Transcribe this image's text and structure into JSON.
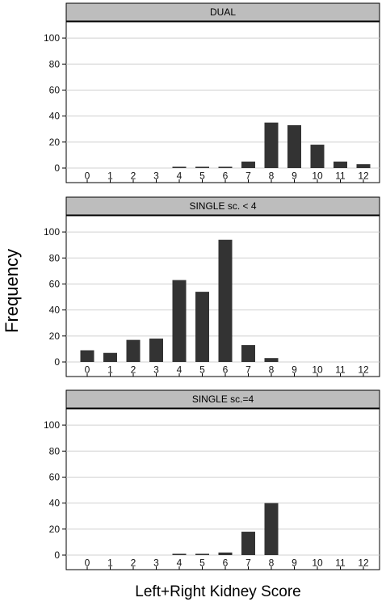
{
  "figure": {
    "ylabel": "Frequency",
    "xlabel": "Left+Right Kidney Score"
  },
  "colors": {
    "bar": "#333333",
    "strip": "#bdbdbd",
    "grid": "#d0d0d0",
    "frame": "#000000"
  },
  "chart_data": [
    {
      "type": "bar",
      "title": "DUAL",
      "categories": [
        "0",
        "1",
        "2",
        "3",
        "4",
        "5",
        "6",
        "7",
        "8",
        "9",
        "10",
        "11",
        "12"
      ],
      "values": [
        0,
        0,
        0,
        0,
        1,
        1,
        1,
        5,
        35,
        33,
        18,
        5,
        3
      ],
      "yticks": [
        0,
        20,
        40,
        60,
        80,
        100
      ],
      "ylim": [
        0,
        110
      ],
      "grid": true
    },
    {
      "type": "bar",
      "title": "SINGLE sc. < 4",
      "categories": [
        "0",
        "1",
        "2",
        "3",
        "4",
        "5",
        "6",
        "7",
        "8",
        "9",
        "10",
        "11",
        "12"
      ],
      "values": [
        9,
        7,
        17,
        18,
        63,
        54,
        94,
        13,
        3,
        0,
        0,
        0,
        0
      ],
      "yticks": [
        0,
        20,
        40,
        60,
        80,
        100
      ],
      "ylim": [
        0,
        110
      ],
      "grid": true
    },
    {
      "type": "bar",
      "title": "SINGLE sc.=4",
      "categories": [
        "0",
        "1",
        "2",
        "3",
        "4",
        "5",
        "6",
        "7",
        "8",
        "9",
        "10",
        "11",
        "12"
      ],
      "values": [
        0,
        0,
        0,
        0,
        1,
        1,
        2,
        18,
        40,
        0,
        0,
        0,
        0
      ],
      "yticks": [
        0,
        20,
        40,
        60,
        80,
        100
      ],
      "ylim": [
        0,
        110
      ],
      "grid": true
    }
  ]
}
